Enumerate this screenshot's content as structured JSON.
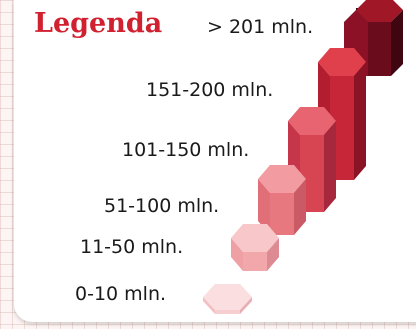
{
  "legend": {
    "title": "Legenda",
    "items": [
      {
        "label": "> 201 mln.",
        "color": "#8c1126"
      },
      {
        "label": "151-200 mln.",
        "color": "#c72638"
      },
      {
        "label": "101-150 mln.",
        "color": "#d84552"
      },
      {
        "label": "51-100 mln.",
        "color": "#e8787f"
      },
      {
        "label": "11-50 mln.",
        "color": "#f2a7ab"
      },
      {
        "label": "0-10 mln.",
        "color": "#f8cfd1"
      }
    ]
  }
}
